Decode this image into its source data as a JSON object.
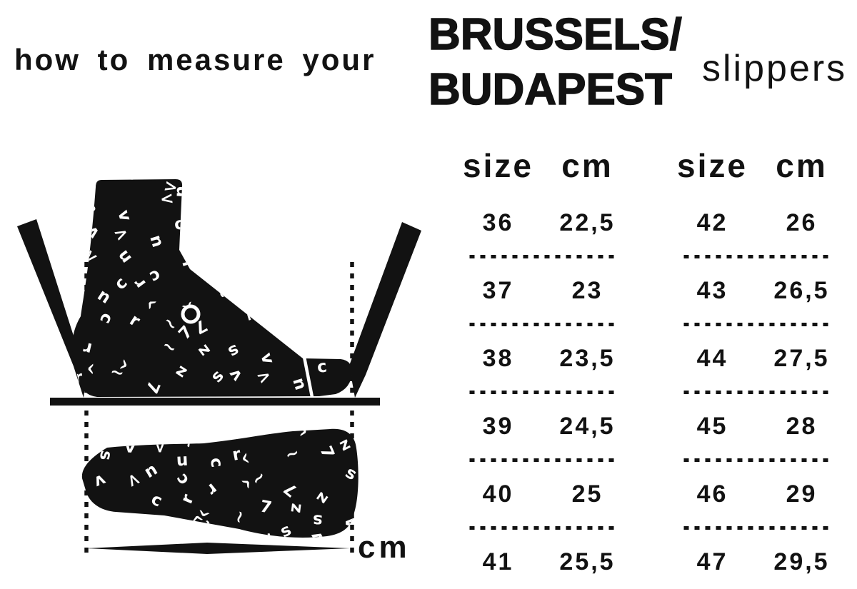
{
  "page": {
    "heading_left": "how to measure your",
    "brand_line1": "BRUSSELS/",
    "brand_line2": "BUDAPEST",
    "product": "slippers"
  },
  "illustration": {
    "unit_label": "cm"
  },
  "size_chart": {
    "tables": [
      {
        "headers": {
          "size": "size",
          "cm": "cm"
        },
        "rows": [
          {
            "size": "36",
            "cm": "22,5"
          },
          {
            "size": "37",
            "cm": "23"
          },
          {
            "size": "38",
            "cm": "23,5"
          },
          {
            "size": "39",
            "cm": "24,5"
          },
          {
            "size": "40",
            "cm": "25"
          },
          {
            "size": "41",
            "cm": "25,5"
          }
        ]
      },
      {
        "headers": {
          "size": "size",
          "cm": "cm"
        },
        "rows": [
          {
            "size": "42",
            "cm": "26"
          },
          {
            "size": "43",
            "cm": "26,5"
          },
          {
            "size": "44",
            "cm": "27,5"
          },
          {
            "size": "45",
            "cm": "28"
          },
          {
            "size": "46",
            "cm": "29"
          },
          {
            "size": "47",
            "cm": "29,5"
          }
        ]
      }
    ]
  },
  "colors": {
    "ink": "#121212",
    "background": "#ffffff"
  }
}
